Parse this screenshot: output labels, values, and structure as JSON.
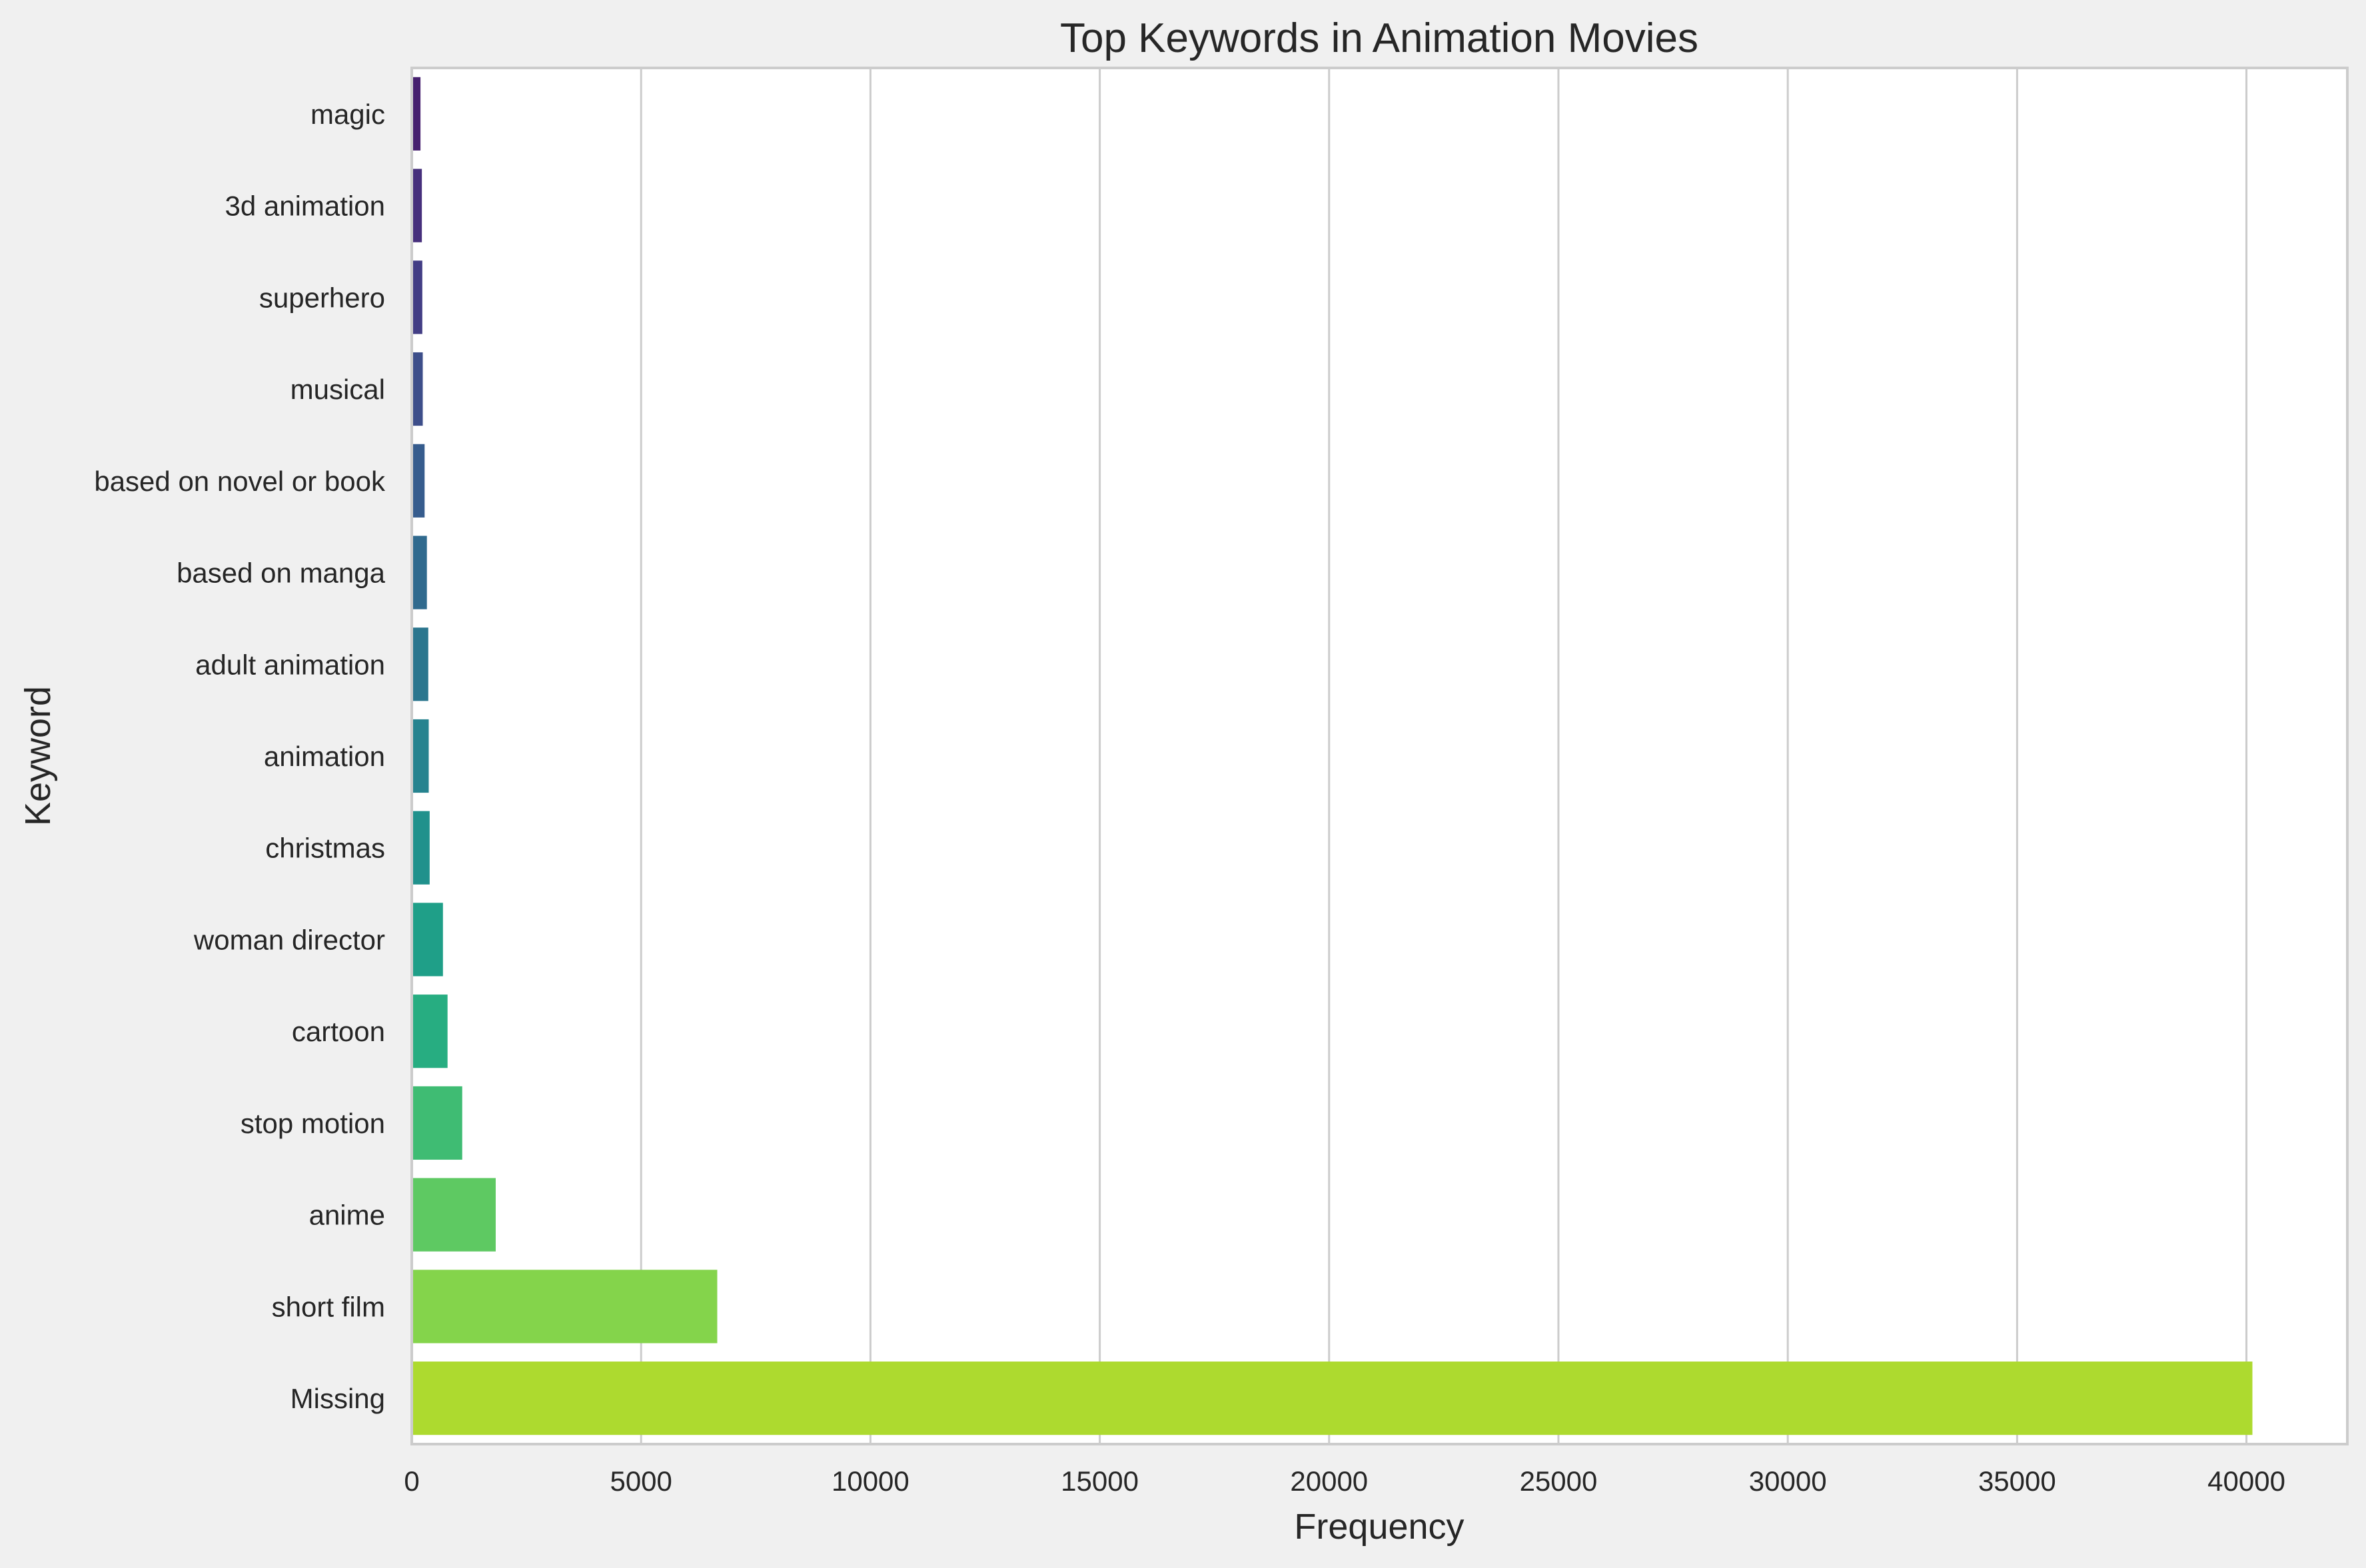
{
  "chart_data": {
    "type": "bar",
    "orientation": "horizontal",
    "title": "Top Keywords in Animation Movies",
    "xlabel": "Frequency",
    "ylabel": "Keyword",
    "xlim": [
      0,
      42200
    ],
    "xticks": [
      0,
      5000,
      10000,
      15000,
      20000,
      25000,
      30000,
      35000,
      40000
    ],
    "grid": "vertical gridlines on",
    "legend": "none",
    "categories": [
      "magic",
      "3d animation",
      "superhero",
      "musical",
      "based on novel or book",
      "based on manga",
      "adult animation",
      "animation",
      "christmas",
      "woman director",
      "cartoon",
      "stop motion",
      "anime",
      "short film",
      "Missing"
    ],
    "values": [
      190,
      220,
      230,
      240,
      280,
      330,
      360,
      370,
      390,
      680,
      780,
      1100,
      1830,
      6660,
      40130
    ],
    "colors": [
      "#46206f",
      "#462f7c",
      "#433e85",
      "#3d4e8a",
      "#365c8d",
      "#306a8e",
      "#2b768e",
      "#26838f",
      "#20918c",
      "#1f9f88",
      "#27ad81",
      "#3fbc73",
      "#5ec962",
      "#84d44b",
      "#adda2f"
    ]
  },
  "style": {
    "figure_background": "#f0f0f0",
    "plot_background": "#ffffff",
    "grid_color": "#cccccc",
    "spine_color": "#cccccc",
    "text_color": "#262626"
  }
}
